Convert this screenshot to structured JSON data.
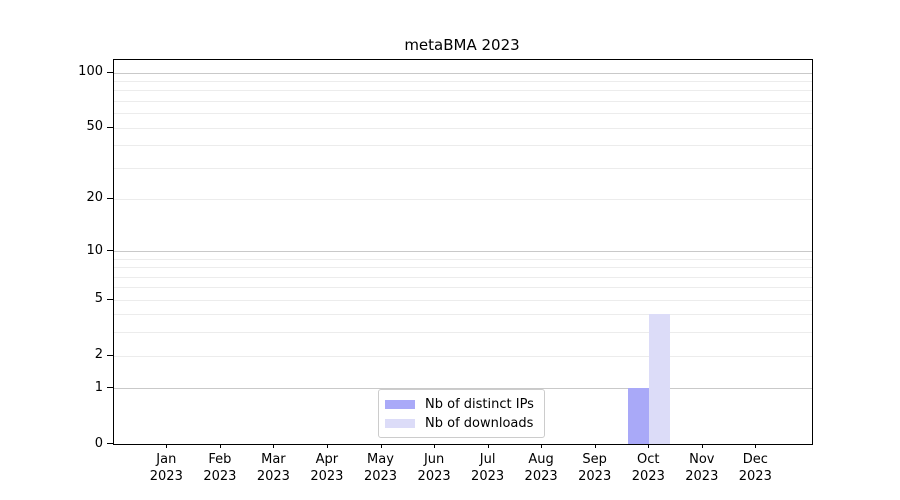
{
  "chart_data": {
    "type": "bar",
    "title": "metaBMA 2023",
    "categories": [
      "Jan 2023",
      "Feb 2023",
      "Mar 2023",
      "Apr 2023",
      "May 2023",
      "Jun 2023",
      "Jul 2023",
      "Aug 2023",
      "Sep 2023",
      "Oct 2023",
      "Nov 2023",
      "Dec 2023"
    ],
    "series": [
      {
        "name": "Nb of distinct IPs",
        "color": "#a9a9f8",
        "values": [
          0,
          0,
          0,
          0,
          0,
          0,
          0,
          0,
          0,
          1,
          0,
          0
        ]
      },
      {
        "name": "Nb of downloads",
        "color": "#dcdcf8",
        "values": [
          0,
          0,
          0,
          0,
          0,
          0,
          0,
          0,
          0,
          4,
          0,
          0
        ]
      }
    ],
    "xlabel": "",
    "ylabel": "",
    "y_axis": {
      "scale": "log1p",
      "ylim": [
        0,
        117
      ],
      "tick_values": [
        0,
        1,
        2,
        5,
        10,
        20,
        50,
        100
      ],
      "major_gridlines": [
        1,
        10,
        100
      ],
      "minor_gridlines": [
        2,
        3,
        4,
        5,
        6,
        7,
        8,
        9,
        20,
        30,
        40,
        50,
        60,
        70,
        80,
        90
      ],
      "grid": "on"
    },
    "legend": {
      "position": "bottom-center",
      "entries": [
        "Nb of distinct IPs",
        "Nb of downloads"
      ]
    },
    "colors": {
      "major_grid": "#c9c9c9",
      "minor_grid": "#ececec",
      "axis": "#000000",
      "background": "#ffffff"
    }
  }
}
